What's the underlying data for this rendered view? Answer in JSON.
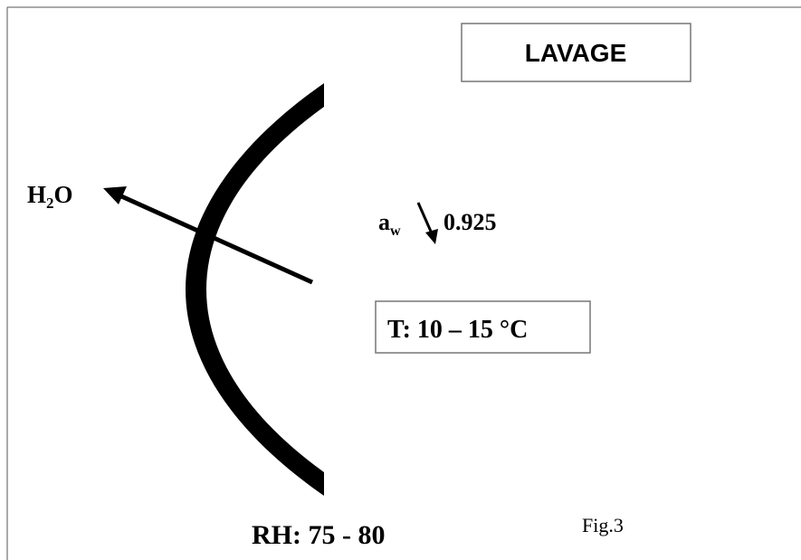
{
  "label_box": {
    "text": "LAVAGE"
  },
  "water": {
    "main": "H",
    "sub": "2",
    "rest": "O"
  },
  "activity": {
    "main": "a",
    "sub": "w",
    "value": "0.925"
  },
  "temperature": {
    "text": "T: 10 – 15 °C"
  },
  "humidity": {
    "text": "RH: 75 - 80"
  },
  "figure": {
    "text": "Fig.3"
  }
}
